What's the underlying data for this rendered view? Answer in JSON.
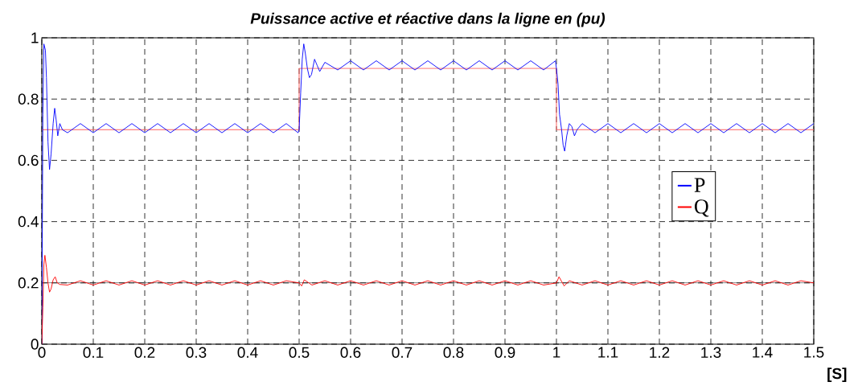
{
  "chart_data": {
    "type": "line",
    "title": "Puissance active et réactive dans la ligne en (pu)",
    "xlabel": "[S]",
    "xlim": [
      0,
      1.5
    ],
    "ylim": [
      0,
      1
    ],
    "xticks": [
      0,
      0.1,
      0.2,
      0.3,
      0.4,
      0.5,
      0.6,
      0.7,
      0.8,
      0.9,
      1,
      1.1,
      1.2,
      1.3,
      1.4,
      1.5
    ],
    "yticks": [
      0,
      0.2,
      0.4,
      0.6,
      0.8,
      1
    ],
    "grid": true,
    "legend": "right",
    "ref_lines": [
      {
        "axis": "y",
        "value": 0.2,
        "color": "#000000"
      }
    ],
    "series": [
      {
        "type": "step",
        "color": "#ff6060",
        "x": [
          0,
          0.5,
          1.0,
          1.5
        ],
        "values": [
          0.7,
          0.9,
          0.7,
          0.7
        ]
      },
      {
        "name": "P",
        "color": "#0000ff",
        "x": [
          0,
          0.002,
          0.004,
          0.007,
          0.009,
          0.012,
          0.015,
          0.018,
          0.022,
          0.025,
          0.028,
          0.031,
          0.035,
          0.04,
          0.05,
          0.075,
          0.1,
          0.125,
          0.15,
          0.175,
          0.2,
          0.225,
          0.25,
          0.275,
          0.3,
          0.325,
          0.35,
          0.375,
          0.4,
          0.425,
          0.45,
          0.475,
          0.498,
          0.5,
          0.503,
          0.506,
          0.509,
          0.512,
          0.516,
          0.52,
          0.524,
          0.53,
          0.535,
          0.54,
          0.55,
          0.575,
          0.6,
          0.625,
          0.65,
          0.675,
          0.7,
          0.725,
          0.75,
          0.775,
          0.8,
          0.825,
          0.85,
          0.875,
          0.9,
          0.925,
          0.95,
          0.975,
          0.998,
          1.0,
          1.003,
          1.006,
          1.01,
          1.013,
          1.016,
          1.02,
          1.025,
          1.03,
          1.035,
          1.04,
          1.05,
          1.075,
          1.1,
          1.125,
          1.15,
          1.175,
          1.2,
          1.225,
          1.25,
          1.275,
          1.3,
          1.325,
          1.35,
          1.375,
          1.4,
          1.425,
          1.45,
          1.475,
          1.5
        ],
        "values": [
          0,
          0.75,
          0.98,
          0.96,
          0.87,
          0.66,
          0.57,
          0.62,
          0.72,
          0.77,
          0.73,
          0.68,
          0.72,
          0.7,
          0.69,
          0.72,
          0.69,
          0.72,
          0.69,
          0.72,
          0.69,
          0.72,
          0.69,
          0.72,
          0.69,
          0.72,
          0.69,
          0.72,
          0.69,
          0.72,
          0.69,
          0.72,
          0.69,
          0.7,
          0.82,
          0.93,
          0.98,
          0.95,
          0.9,
          0.87,
          0.88,
          0.93,
          0.91,
          0.89,
          0.92,
          0.895,
          0.925,
          0.895,
          0.925,
          0.895,
          0.925,
          0.895,
          0.925,
          0.895,
          0.925,
          0.895,
          0.925,
          0.895,
          0.925,
          0.895,
          0.925,
          0.895,
          0.925,
          0.9,
          0.85,
          0.75,
          0.7,
          0.65,
          0.63,
          0.68,
          0.72,
          0.71,
          0.68,
          0.7,
          0.72,
          0.69,
          0.72,
          0.69,
          0.72,
          0.69,
          0.72,
          0.69,
          0.72,
          0.69,
          0.72,
          0.69,
          0.72,
          0.69,
          0.72,
          0.69,
          0.72,
          0.69,
          0.72
        ]
      },
      {
        "name": "Q",
        "color": "#ff0000",
        "x": [
          0,
          0.002,
          0.004,
          0.006,
          0.009,
          0.012,
          0.015,
          0.018,
          0.022,
          0.026,
          0.03,
          0.035,
          0.05,
          0.075,
          0.1,
          0.125,
          0.15,
          0.175,
          0.2,
          0.225,
          0.25,
          0.275,
          0.3,
          0.325,
          0.35,
          0.375,
          0.4,
          0.425,
          0.45,
          0.475,
          0.5,
          0.505,
          0.51,
          0.525,
          0.55,
          0.575,
          0.6,
          0.625,
          0.65,
          0.675,
          0.7,
          0.725,
          0.75,
          0.775,
          0.8,
          0.825,
          0.85,
          0.875,
          0.9,
          0.925,
          0.95,
          0.975,
          1.0,
          1.005,
          1.015,
          1.025,
          1.05,
          1.075,
          1.1,
          1.125,
          1.15,
          1.175,
          1.2,
          1.225,
          1.25,
          1.275,
          1.3,
          1.325,
          1.35,
          1.375,
          1.4,
          1.425,
          1.45,
          1.475,
          1.5
        ],
        "values": [
          0,
          0.12,
          0.26,
          0.29,
          0.25,
          0.2,
          0.17,
          0.18,
          0.21,
          0.22,
          0.2,
          0.195,
          0.193,
          0.207,
          0.193,
          0.207,
          0.193,
          0.207,
          0.193,
          0.207,
          0.193,
          0.207,
          0.193,
          0.207,
          0.193,
          0.207,
          0.193,
          0.207,
          0.193,
          0.207,
          0.2,
          0.19,
          0.21,
          0.193,
          0.207,
          0.193,
          0.207,
          0.193,
          0.207,
          0.193,
          0.207,
          0.193,
          0.207,
          0.193,
          0.207,
          0.193,
          0.207,
          0.193,
          0.207,
          0.193,
          0.207,
          0.193,
          0.2,
          0.22,
          0.19,
          0.207,
          0.193,
          0.207,
          0.193,
          0.207,
          0.193,
          0.207,
          0.193,
          0.207,
          0.193,
          0.207,
          0.193,
          0.207,
          0.193,
          0.207,
          0.193,
          0.207,
          0.193,
          0.207,
          0.2
        ]
      }
    ]
  }
}
